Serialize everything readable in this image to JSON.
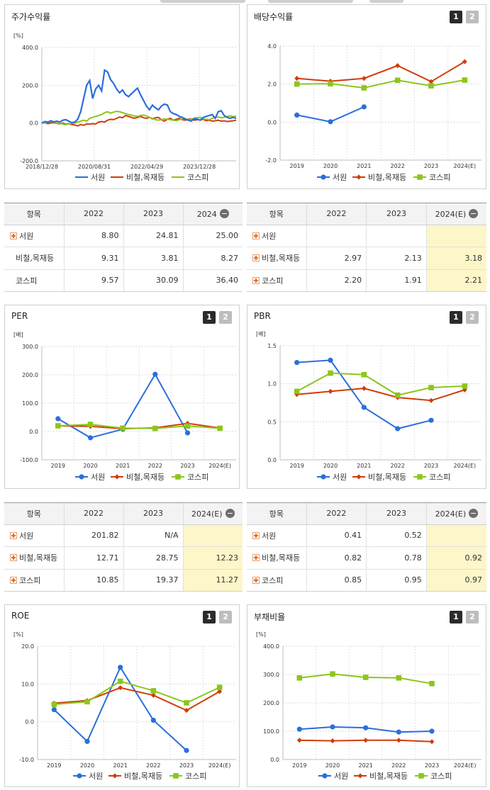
{
  "colors": {
    "seowon": "#2a6fdb",
    "steel": "#d03c0a",
    "kospi": "#8cc61c"
  },
  "legend_labels": [
    "서원",
    "비철,목재등",
    "코스피"
  ],
  "panels": {
    "stock": {
      "title": "주가수익률",
      "unit": "[%]",
      "buttons": []
    },
    "dividend": {
      "title": "배당수익률",
      "unit": "",
      "buttons": [
        "1",
        "2"
      ]
    },
    "per": {
      "title": "PER",
      "unit": "[배]",
      "buttons": [
        "1",
        "2"
      ]
    },
    "pbr": {
      "title": "PBR",
      "unit": "[배]",
      "buttons": [
        "1",
        "2"
      ]
    },
    "roe": {
      "title": "ROE",
      "unit": "[%]",
      "buttons": [
        "1",
        "2"
      ]
    },
    "debt": {
      "title": "부채비율",
      "unit": "[%]",
      "buttons": [
        "1",
        "2"
      ]
    }
  },
  "tables": {
    "stock": {
      "header": [
        "항목",
        "2022",
        "2023",
        "2024"
      ],
      "rows": [
        {
          "name": "서원",
          "plus": true,
          "values": [
            "8.80",
            "24.81",
            "25.00"
          ]
        },
        {
          "name": "비철,목재등",
          "plus": false,
          "values": [
            "9.31",
            "3.81",
            "8.27"
          ]
        },
        {
          "name": "코스피",
          "plus": false,
          "values": [
            "9.57",
            "30.09",
            "36.40"
          ]
        }
      ]
    },
    "dividend": {
      "header": [
        "항목",
        "2022",
        "2023",
        "2024(E)"
      ],
      "rows": [
        {
          "name": "서원",
          "plus": true,
          "values": [
            "",
            "",
            ""
          ]
        },
        {
          "name": "비철,목재등",
          "plus": true,
          "values": [
            "2.97",
            "2.13",
            "3.18"
          ]
        },
        {
          "name": "코스피",
          "plus": true,
          "values": [
            "2.20",
            "1.91",
            "2.21"
          ]
        }
      ]
    },
    "per": {
      "header": [
        "항목",
        "2022",
        "2023",
        "2024(E)"
      ],
      "rows": [
        {
          "name": "서원",
          "plus": true,
          "values": [
            "201.82",
            "N/A",
            ""
          ]
        },
        {
          "name": "비철,목재등",
          "plus": true,
          "values": [
            "12.71",
            "28.75",
            "12.23"
          ]
        },
        {
          "name": "코스피",
          "plus": true,
          "values": [
            "10.85",
            "19.37",
            "11.27"
          ]
        }
      ]
    },
    "pbr": {
      "header": [
        "항목",
        "2022",
        "2023",
        "2024(E)"
      ],
      "rows": [
        {
          "name": "서원",
          "plus": true,
          "values": [
            "0.41",
            "0.52",
            ""
          ]
        },
        {
          "name": "비철,목재등",
          "plus": true,
          "values": [
            "0.82",
            "0.78",
            "0.92"
          ]
        },
        {
          "name": "코스피",
          "plus": true,
          "values": [
            "0.85",
            "0.95",
            "0.97"
          ]
        }
      ]
    }
  },
  "chart_data": [
    {
      "id": "stock",
      "type": "line",
      "ylabel": "[%]",
      "ylim": [
        -200,
        400
      ],
      "yticks": [
        "400.0",
        "200.0",
        "0.0",
        "-200.0"
      ],
      "xticks": [
        "2018/12/28",
        "2020/08/31",
        "2022/04/29",
        "2023/12/28"
      ],
      "series": [
        {
          "name": "서원",
          "values": [
            0,
            8,
            5,
            12,
            6,
            10,
            5,
            15,
            18,
            10,
            2,
            5,
            20,
            60,
            130,
            200,
            225,
            130,
            180,
            200,
            170,
            280,
            270,
            230,
            210,
            180,
            160,
            175,
            150,
            140,
            155,
            170,
            185,
            150,
            120,
            90,
            70,
            95,
            80,
            70,
            90,
            100,
            95,
            60,
            50,
            45,
            35,
            30,
            20,
            15,
            10,
            25,
            20,
            15,
            30,
            35,
            40,
            45,
            25,
            60,
            65,
            40,
            30,
            25,
            30,
            25
          ]
        },
        {
          "name": "비철,목재등",
          "values": [
            0,
            2,
            -3,
            0,
            2,
            -2,
            -4,
            0,
            -6,
            -4,
            -8,
            -10,
            -15,
            -8,
            -12,
            -5,
            -6,
            -3,
            -5,
            5,
            8,
            5,
            15,
            20,
            18,
            25,
            32,
            28,
            40,
            35,
            30,
            25,
            30,
            35,
            28,
            25,
            30,
            22,
            28,
            30,
            18,
            10,
            20,
            25,
            15,
            20,
            25,
            18,
            15,
            20,
            22,
            15,
            18,
            16,
            20,
            12,
            15,
            10,
            12,
            15,
            10,
            12,
            8,
            10,
            12,
            15
          ]
        },
        {
          "name": "코스피",
          "values": [
            0,
            3,
            5,
            8,
            5,
            0,
            -2,
            -5,
            -8,
            -4,
            -2,
            0,
            5,
            10,
            15,
            10,
            25,
            30,
            35,
            40,
            45,
            55,
            60,
            52,
            58,
            62,
            60,
            55,
            50,
            45,
            42,
            38,
            35,
            40,
            42,
            38,
            30,
            25,
            18,
            15,
            18,
            22,
            20,
            18,
            15,
            12,
            18,
            22,
            25,
            15,
            20,
            25,
            28,
            30,
            22,
            20,
            18,
            25,
            30,
            32,
            28,
            30,
            35,
            38,
            34,
            37
          ]
        }
      ]
    },
    {
      "id": "dividend",
      "type": "line",
      "ylim": [
        -2,
        4
      ],
      "yticks": [
        "4.0",
        "2.0",
        "0.0",
        "-2.0"
      ],
      "categories": [
        "2019",
        "2020",
        "2021",
        "2022",
        "2023",
        "2024(E)"
      ],
      "series": [
        {
          "name": "서원",
          "values": [
            0.37,
            0.02,
            0.8,
            null,
            null,
            null
          ]
        },
        {
          "name": "비철,목재등",
          "values": [
            2.3,
            2.15,
            2.3,
            2.97,
            2.13,
            3.18
          ]
        },
        {
          "name": "코스피",
          "values": [
            2.0,
            2.02,
            1.8,
            2.2,
            1.91,
            2.21
          ]
        }
      ]
    },
    {
      "id": "per",
      "type": "line",
      "ylabel": "[배]",
      "ylim": [
        -100,
        300
      ],
      "yticks": [
        "300.0",
        "200.0",
        "100.0",
        "0.0",
        "-100.0"
      ],
      "categories": [
        "2019",
        "2020",
        "2021",
        "2022",
        "2023",
        "2024(E)"
      ],
      "series": [
        {
          "name": "서원",
          "values": [
            45,
            -22,
            8,
            201.82,
            -5,
            null
          ]
        },
        {
          "name": "비철,목재등",
          "values": [
            20,
            18,
            10,
            12.71,
            28.75,
            12.23
          ]
        },
        {
          "name": "코스피",
          "values": [
            20,
            25,
            12,
            10.85,
            19.37,
            11.27
          ]
        }
      ]
    },
    {
      "id": "pbr",
      "type": "line",
      "ylabel": "[배]",
      "ylim": [
        0,
        1.5
      ],
      "yticks": [
        "1.5",
        "1.0",
        "0.5",
        "0.0"
      ],
      "categories": [
        "2019",
        "2020",
        "2021",
        "2022",
        "2023",
        "2024(E)"
      ],
      "series": [
        {
          "name": "서원",
          "values": [
            1.28,
            1.31,
            0.69,
            0.41,
            0.52,
            null
          ]
        },
        {
          "name": "비철,목재등",
          "values": [
            0.86,
            0.9,
            0.94,
            0.82,
            0.78,
            0.92
          ]
        },
        {
          "name": "코스피",
          "values": [
            0.9,
            1.14,
            1.12,
            0.85,
            0.95,
            0.97
          ]
        }
      ]
    },
    {
      "id": "roe",
      "type": "line",
      "ylabel": "[%]",
      "ylim": [
        -10,
        20
      ],
      "yticks": [
        "20.0",
        "10.0",
        "0.0",
        "-10.0"
      ],
      "categories": [
        "2019",
        "2020",
        "2021",
        "2022",
        "2023",
        "2024(E)"
      ],
      "series": [
        {
          "name": "서원",
          "values": [
            3.2,
            -5.2,
            14.4,
            0.4,
            -7.6,
            null
          ]
        },
        {
          "name": "비철,목재등",
          "values": [
            4.9,
            5.6,
            9.0,
            7.0,
            3.0,
            8.0
          ]
        },
        {
          "name": "코스피",
          "values": [
            4.6,
            5.3,
            10.7,
            8.2,
            5.0,
            9.1
          ]
        }
      ]
    },
    {
      "id": "debt",
      "type": "line",
      "ylabel": "[%]",
      "ylim": [
        0,
        400
      ],
      "yticks": [
        "400.0",
        "300.0",
        "200.0",
        "100.0",
        "0.0"
      ],
      "categories": [
        "2019",
        "2020",
        "2021",
        "2022",
        "2023",
        "2024(E)"
      ],
      "series": [
        {
          "name": "서원",
          "values": [
            107,
            115,
            112,
            97,
            100,
            null
          ]
        },
        {
          "name": "비철,목재등",
          "values": [
            68,
            66,
            68,
            68,
            63,
            null
          ]
        },
        {
          "name": "코스피",
          "values": [
            288,
            302,
            290,
            288,
            268,
            null
          ]
        }
      ]
    }
  ]
}
